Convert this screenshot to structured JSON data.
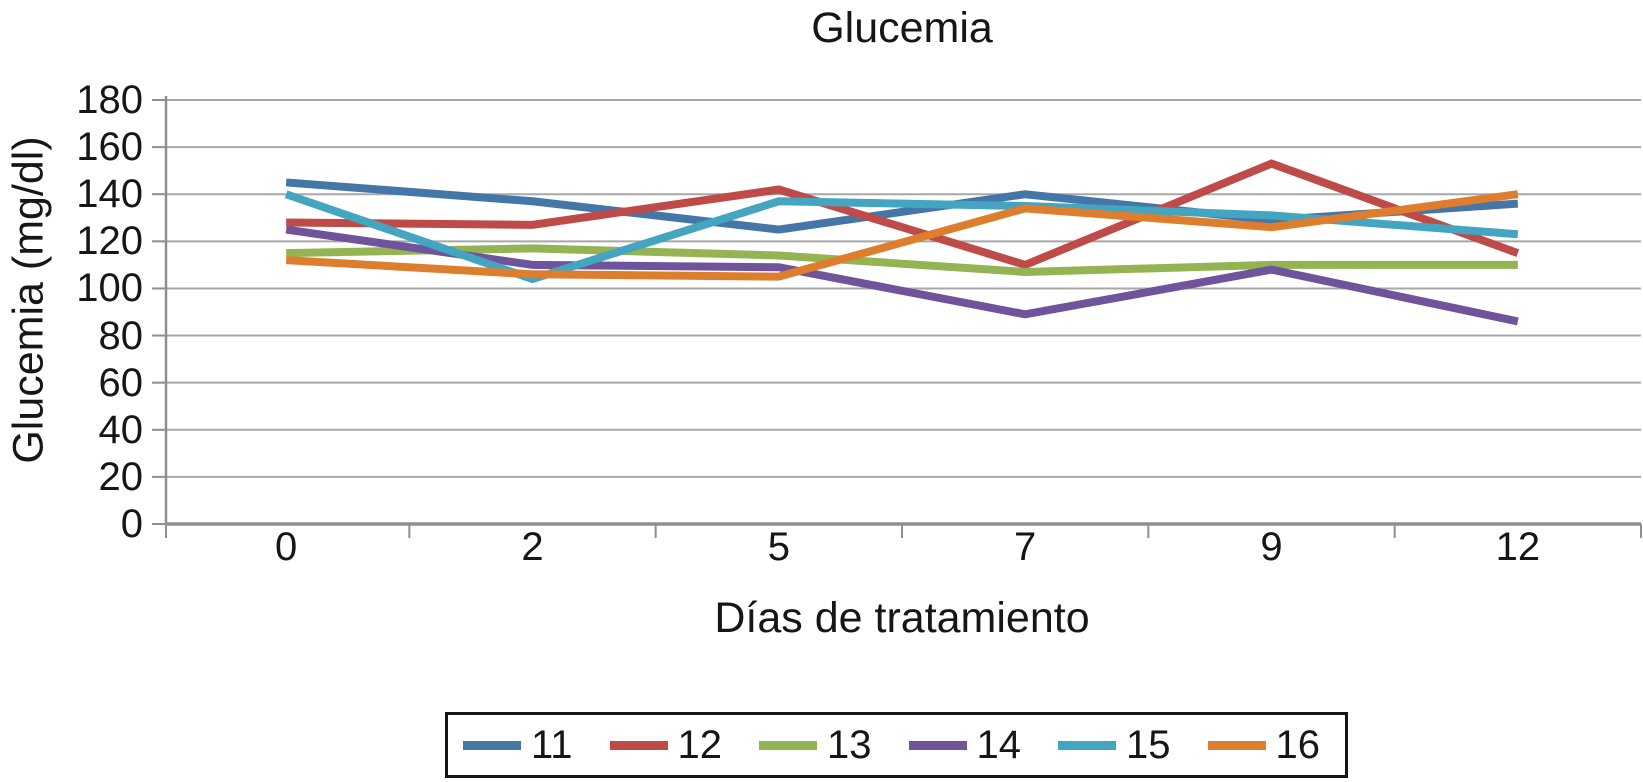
{
  "chart_data": {
    "type": "line",
    "title": "Glucemia",
    "xlabel": "Días de tratamiento",
    "ylabel": "Glucemia (mg/dl)",
    "x_categories": [
      "0",
      "2",
      "5",
      "7",
      "9",
      "12"
    ],
    "y_ticks": [
      0,
      20,
      40,
      60,
      80,
      100,
      120,
      140,
      160,
      180
    ],
    "ylim": [
      0,
      180
    ],
    "grid": "horizontal-gridlines",
    "legend_position": "bottom",
    "series": [
      {
        "name": "11",
        "color": "#4476A8",
        "values": [
          145,
          137,
          125,
          140,
          129,
          136
        ]
      },
      {
        "name": "12",
        "color": "#BE4B48",
        "values": [
          128,
          127,
          142,
          110,
          153,
          115
        ]
      },
      {
        "name": "13",
        "color": "#94B454",
        "values": [
          115,
          117,
          114,
          107,
          110,
          110
        ]
      },
      {
        "name": "14",
        "color": "#70549B",
        "values": [
          125,
          110,
          109,
          89,
          108,
          86
        ]
      },
      {
        "name": "15",
        "color": "#43A5C0",
        "values": [
          140,
          104,
          137,
          135,
          131,
          123
        ]
      },
      {
        "name": "16",
        "color": "#DD7E2E",
        "values": [
          112,
          106,
          105,
          134,
          126,
          140
        ]
      }
    ]
  },
  "style_colors": {
    "gridline": "#A8A8A8",
    "axis": "#8F8F8F",
    "text": "#161616"
  }
}
